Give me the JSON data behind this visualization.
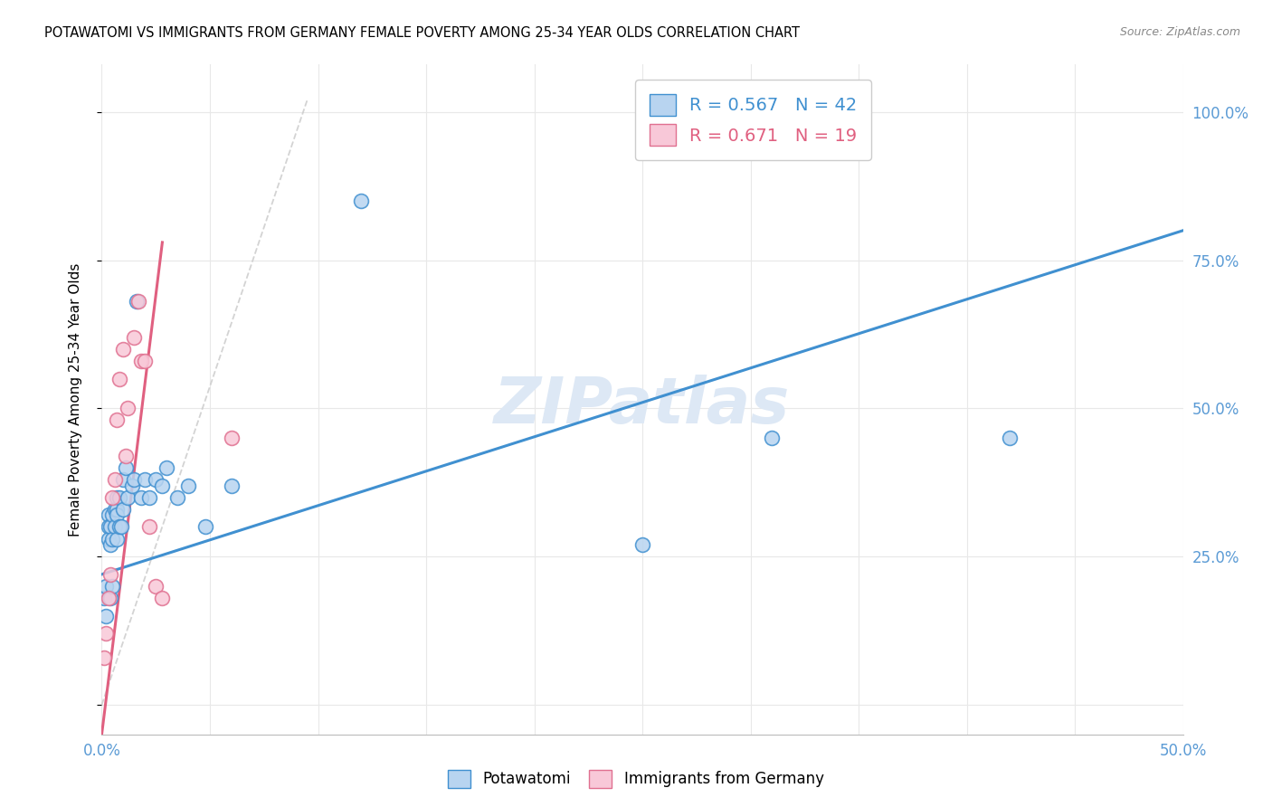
{
  "title": "POTAWATOMI VS IMMIGRANTS FROM GERMANY FEMALE POVERTY AMONG 25-34 YEAR OLDS CORRELATION CHART",
  "source": "Source: ZipAtlas.com",
  "ylabel": "Female Poverty Among 25-34 Year Olds",
  "xlim": [
    0.0,
    0.5
  ],
  "ylim": [
    -0.05,
    1.08
  ],
  "xticks": [
    0.0,
    0.05,
    0.1,
    0.15,
    0.2,
    0.25,
    0.3,
    0.35,
    0.4,
    0.45,
    0.5
  ],
  "yticks": [
    0.0,
    0.25,
    0.5,
    0.75,
    1.0
  ],
  "yticklabels_right": [
    "",
    "25.0%",
    "50.0%",
    "75.0%",
    "100.0%"
  ],
  "potawatomi_R": 0.567,
  "potawatomi_N": 42,
  "germany_R": 0.671,
  "germany_N": 19,
  "potawatomi_face_color": "#b8d4f0",
  "germany_face_color": "#f8c8d8",
  "potawatomi_edge_color": "#4090d0",
  "germany_edge_color": "#e07090",
  "potawatomi_line_color": "#4090d0",
  "germany_line_color": "#e06080",
  "ref_line_color": "#cccccc",
  "axis_label_color": "#5b9bd5",
  "watermark_text": "ZIPatlas",
  "watermark_color": "#dde8f5",
  "background_color": "#ffffff",
  "grid_color": "#e8e8e8",
  "potawatomi_x": [
    0.001,
    0.002,
    0.002,
    0.003,
    0.003,
    0.003,
    0.004,
    0.004,
    0.004,
    0.005,
    0.005,
    0.005,
    0.006,
    0.006,
    0.007,
    0.007,
    0.007,
    0.007,
    0.008,
    0.008,
    0.009,
    0.01,
    0.01,
    0.011,
    0.012,
    0.014,
    0.015,
    0.016,
    0.018,
    0.02,
    0.022,
    0.025,
    0.028,
    0.03,
    0.035,
    0.04,
    0.048,
    0.06,
    0.12,
    0.25,
    0.31,
    0.42
  ],
  "potawatomi_y": [
    0.18,
    0.2,
    0.15,
    0.32,
    0.3,
    0.28,
    0.3,
    0.27,
    0.18,
    0.32,
    0.28,
    0.2,
    0.33,
    0.3,
    0.35,
    0.33,
    0.32,
    0.28,
    0.35,
    0.3,
    0.3,
    0.38,
    0.33,
    0.4,
    0.35,
    0.37,
    0.38,
    0.68,
    0.35,
    0.38,
    0.35,
    0.38,
    0.37,
    0.4,
    0.35,
    0.37,
    0.3,
    0.37,
    0.85,
    0.27,
    0.45,
    0.45
  ],
  "germany_x": [
    0.001,
    0.002,
    0.003,
    0.004,
    0.005,
    0.006,
    0.007,
    0.008,
    0.01,
    0.011,
    0.012,
    0.015,
    0.017,
    0.018,
    0.02,
    0.022,
    0.025,
    0.028,
    0.06
  ],
  "germany_y": [
    0.08,
    0.12,
    0.18,
    0.22,
    0.35,
    0.38,
    0.48,
    0.55,
    0.6,
    0.42,
    0.5,
    0.62,
    0.68,
    0.58,
    0.58,
    0.3,
    0.2,
    0.18,
    0.45
  ],
  "blue_line_y0": 0.22,
  "blue_line_y1": 0.8,
  "pink_line_y0": -0.05,
  "pink_line_y1": 0.78,
  "pink_line_x0": 0.0,
  "pink_line_x1": 0.028
}
